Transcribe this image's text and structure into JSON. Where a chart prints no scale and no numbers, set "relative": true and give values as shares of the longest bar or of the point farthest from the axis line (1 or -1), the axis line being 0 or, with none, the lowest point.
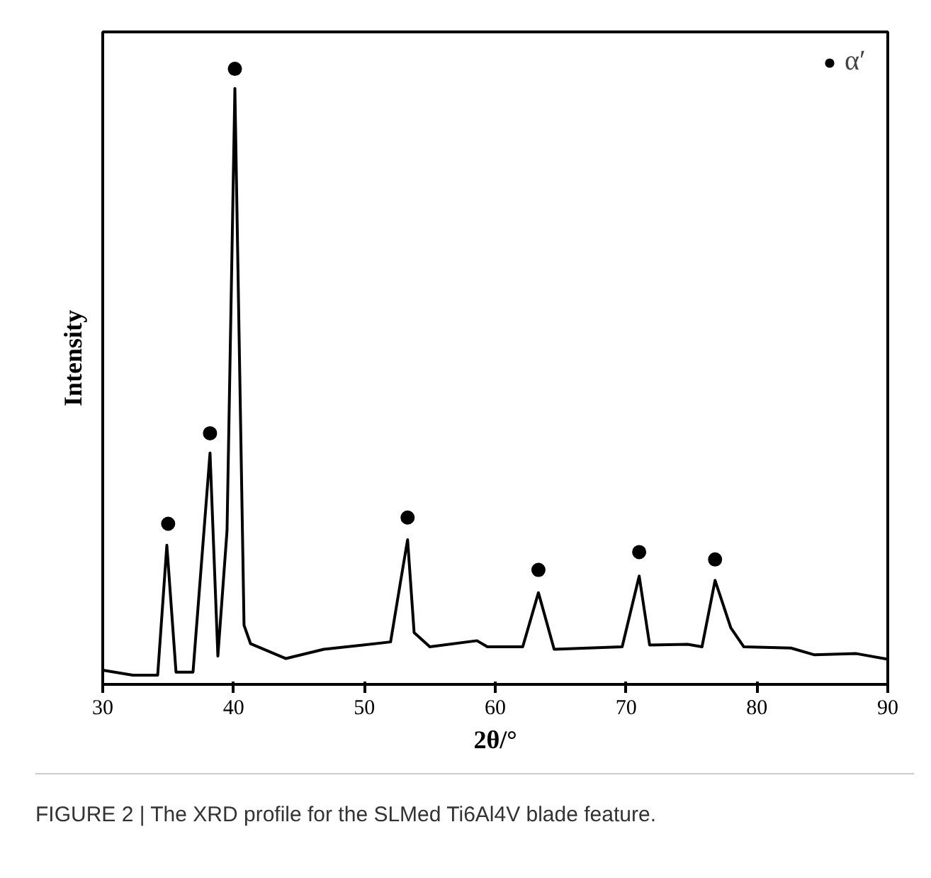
{
  "chart_data": {
    "type": "line",
    "xlabel": "2θ/°",
    "ylabel": "Intensity",
    "relative": true,
    "xlim": [
      30,
      90
    ],
    "xticks": [
      30,
      40,
      50,
      60,
      70,
      80,
      90
    ],
    "grid": false,
    "legend": "top right",
    "series": [
      {
        "color": "#000000",
        "x": [
          30,
          32.3,
          34.2,
          34.9,
          35.6,
          36.9,
          38.2,
          38.8,
          39.5,
          40.1,
          40.8,
          41.3,
          44.0,
          46.9,
          52.0,
          52.8,
          53.3,
          53.8,
          55.0,
          58.6,
          59.4,
          62.1,
          63.3,
          64.5,
          69.7,
          71.0,
          71.8,
          74.7,
          75.8,
          76.8,
          78.0,
          79.0,
          82.6,
          84.4,
          87.6,
          90
        ],
        "values": [
          0.023,
          0.015,
          0.015,
          0.226,
          0.02,
          0.02,
          0.376,
          0.046,
          0.25,
          0.968,
          0.096,
          0.066,
          0.042,
          0.057,
          0.069,
          0.172,
          0.235,
          0.084,
          0.061,
          0.071,
          0.061,
          0.061,
          0.149,
          0.057,
          0.061,
          0.176,
          0.064,
          0.065,
          0.061,
          0.169,
          0.092,
          0.061,
          0.059,
          0.048,
          0.05,
          0.041
        ]
      },
      {
        "type": "scatter",
        "name": "α′",
        "color": "#000000",
        "marker": "circle",
        "x": [
          35.0,
          38.2,
          40.1,
          53.3,
          63.3,
          71.0,
          76.8
        ],
        "values": [
          0.261,
          0.408,
          1.0,
          0.271,
          0.186,
          0.215,
          0.203
        ]
      }
    ],
    "annotations": [
      "FIGURE 2 | The XRD profile for the SLMed Ti6Al4V blade feature."
    ]
  }
}
